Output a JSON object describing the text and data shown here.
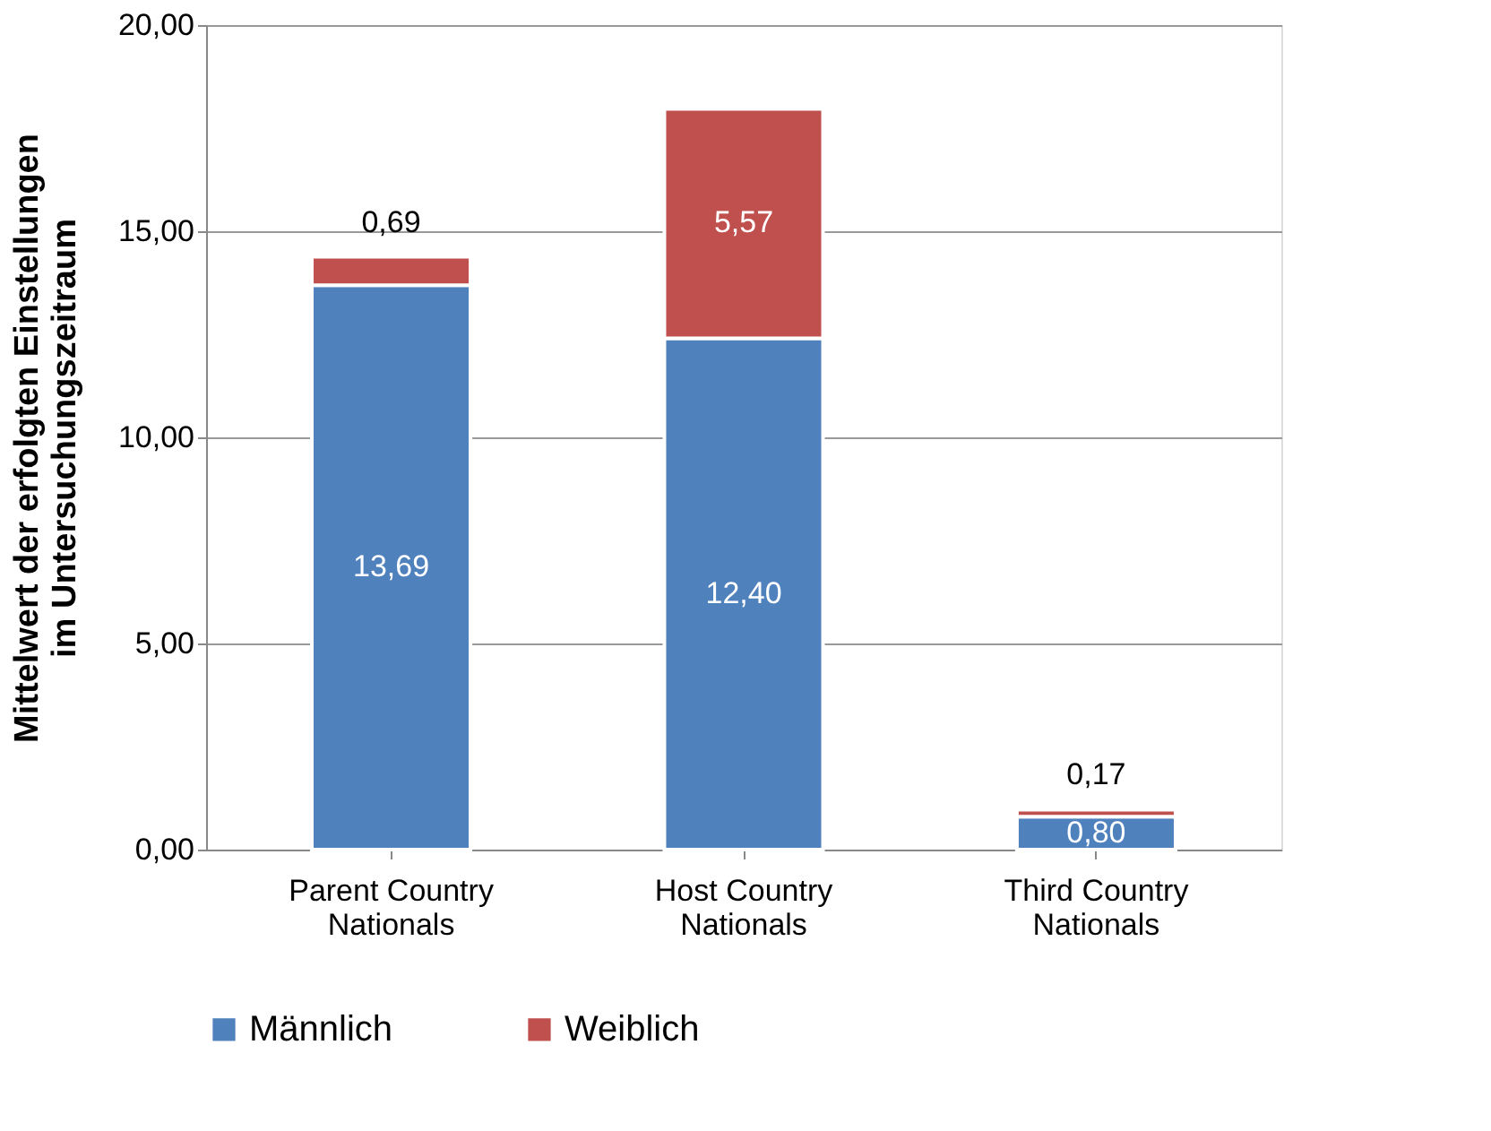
{
  "chart_data": {
    "type": "bar",
    "stacked": true,
    "ylabel": "Mittelwert der erfolgten Einstellungen im Untersuchungszeitraum",
    "categories": [
      "Parent Country Nationals",
      "Host Country Nationals",
      "Third Country Nationals"
    ],
    "series": [
      {
        "name": "Männlich",
        "color": "#4f81bd",
        "values": [
          13.69,
          12.4,
          0.8
        ],
        "value_labels": [
          "13,69",
          "12,40",
          "0,80"
        ]
      },
      {
        "name": "Weiblich",
        "color": "#c0504d",
        "values": [
          0.69,
          5.57,
          0.17
        ],
        "value_labels": [
          "0,69",
          "5,57",
          "0,17"
        ]
      }
    ],
    "ylim": [
      0,
      20
    ],
    "yticks": [
      {
        "value": 0,
        "label": "0,00"
      },
      {
        "value": 5,
        "label": "5,00"
      },
      {
        "value": 10,
        "label": "10,00"
      },
      {
        "value": 15,
        "label": "15,00"
      },
      {
        "value": 20,
        "label": "20,00"
      }
    ],
    "grid": "y",
    "legend": "bottom"
  }
}
